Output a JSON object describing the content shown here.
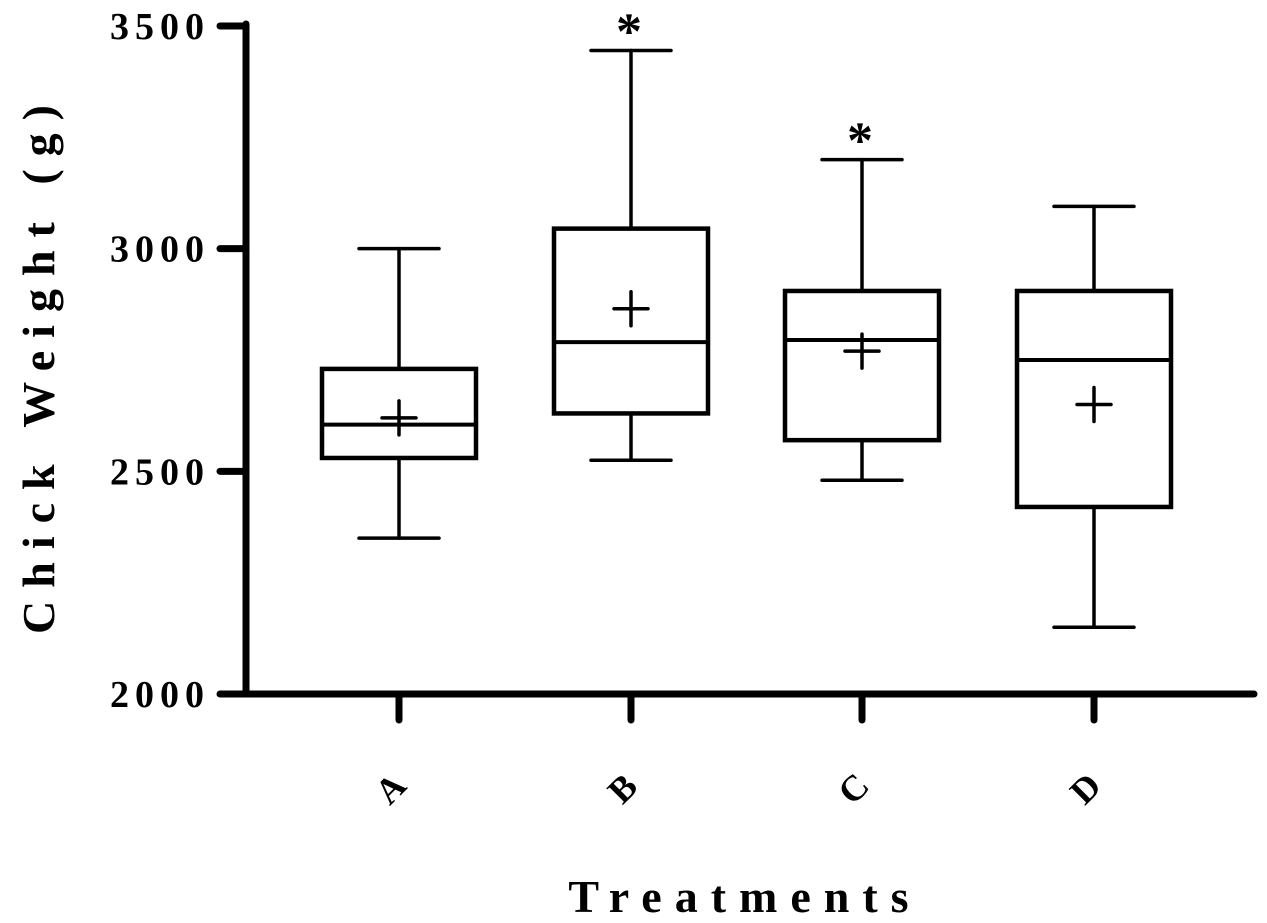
{
  "chart_data": {
    "type": "box",
    "title": "",
    "xlabel": "Treatments",
    "ylabel": "Chick Weight (g)",
    "ylim": [
      2000,
      3500
    ],
    "yticks": [
      2000,
      2500,
      3000,
      3500
    ],
    "ytick_labels": [
      "2000",
      "2500",
      "3000",
      "3500"
    ],
    "grid": false,
    "legend": null,
    "categories": [
      "A",
      "B",
      "C",
      "D"
    ],
    "series": [
      {
        "name": "A",
        "whisker_low": 2350,
        "q1": 2530,
        "median": 2605,
        "q3": 2730,
        "whisker_high": 3000,
        "mean": 2620,
        "significance": ""
      },
      {
        "name": "B",
        "whisker_low": 2525,
        "q1": 2630,
        "median": 2790,
        "q3": 3045,
        "whisker_high": 3445,
        "mean": 2865,
        "significance": "*"
      },
      {
        "name": "C",
        "whisker_low": 2480,
        "q1": 2570,
        "median": 2795,
        "q3": 2905,
        "whisker_high": 3200,
        "mean": 2770,
        "significance": "*"
      },
      {
        "name": "D",
        "whisker_low": 2150,
        "q1": 2420,
        "median": 2750,
        "q3": 2905,
        "whisker_high": 3095,
        "mean": 2650,
        "significance": ""
      }
    ],
    "annotations": [
      {
        "category": "B",
        "text": "*",
        "position": "above upper whisker"
      },
      {
        "category": "C",
        "text": "*",
        "position": "above upper whisker"
      }
    ],
    "colors": {
      "stroke": "#000000",
      "box_fill": "#ffffff",
      "background": "#ffffff"
    }
  }
}
